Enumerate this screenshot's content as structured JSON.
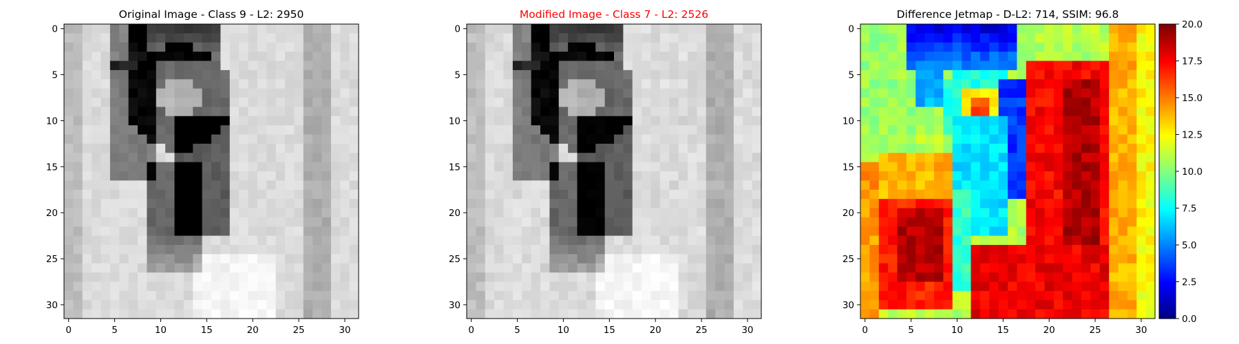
{
  "chart_data": [
    {
      "type": "heatmap",
      "title": "Original Image - Class 9 - L2: 2950",
      "title_color": "#000000",
      "colormap": "gray",
      "xlim": [
        -0.5,
        31.5
      ],
      "ylim": [
        31.5,
        -0.5
      ],
      "xticks": [
        0,
        5,
        10,
        15,
        20,
        25,
        30
      ],
      "yticks": [
        0,
        5,
        10,
        15,
        20,
        25,
        30
      ],
      "grid": false,
      "size": [
        32,
        32
      ],
      "description": "32x32 grayscale image of a handwritten-style digit 9 (dark strokes on light background)"
    },
    {
      "type": "heatmap",
      "title": "Modified Image - Class 7 - L2: 2526",
      "title_color": "#ff0000",
      "colormap": "gray",
      "xlim": [
        -0.5,
        31.5
      ],
      "ylim": [
        31.5,
        -0.5
      ],
      "xticks": [
        0,
        5,
        10,
        15,
        20,
        25,
        30
      ],
      "yticks": [
        0,
        5,
        10,
        15,
        20,
        25,
        30
      ],
      "grid": false,
      "size": [
        32,
        32
      ]
    },
    {
      "type": "heatmap",
      "title": "Difference Jetmap - D-L2: 714, SSIM: 96.8",
      "title_color": "#000000",
      "colormap": "jet",
      "xlim": [
        -0.5,
        31.5
      ],
      "ylim": [
        31.5,
        -0.5
      ],
      "xticks": [
        0,
        5,
        10,
        15,
        20,
        25,
        30
      ],
      "yticks": [
        0,
        5,
        10,
        15,
        20,
        25,
        30
      ],
      "grid": false,
      "size": [
        32,
        32
      ],
      "colorbar": {
        "range": [
          0,
          20
        ],
        "ticks": [
          "0.0",
          "2.5",
          "5.0",
          "7.5",
          "10.0",
          "12.5",
          "15.0",
          "17.5",
          "20.0"
        ]
      }
    }
  ]
}
